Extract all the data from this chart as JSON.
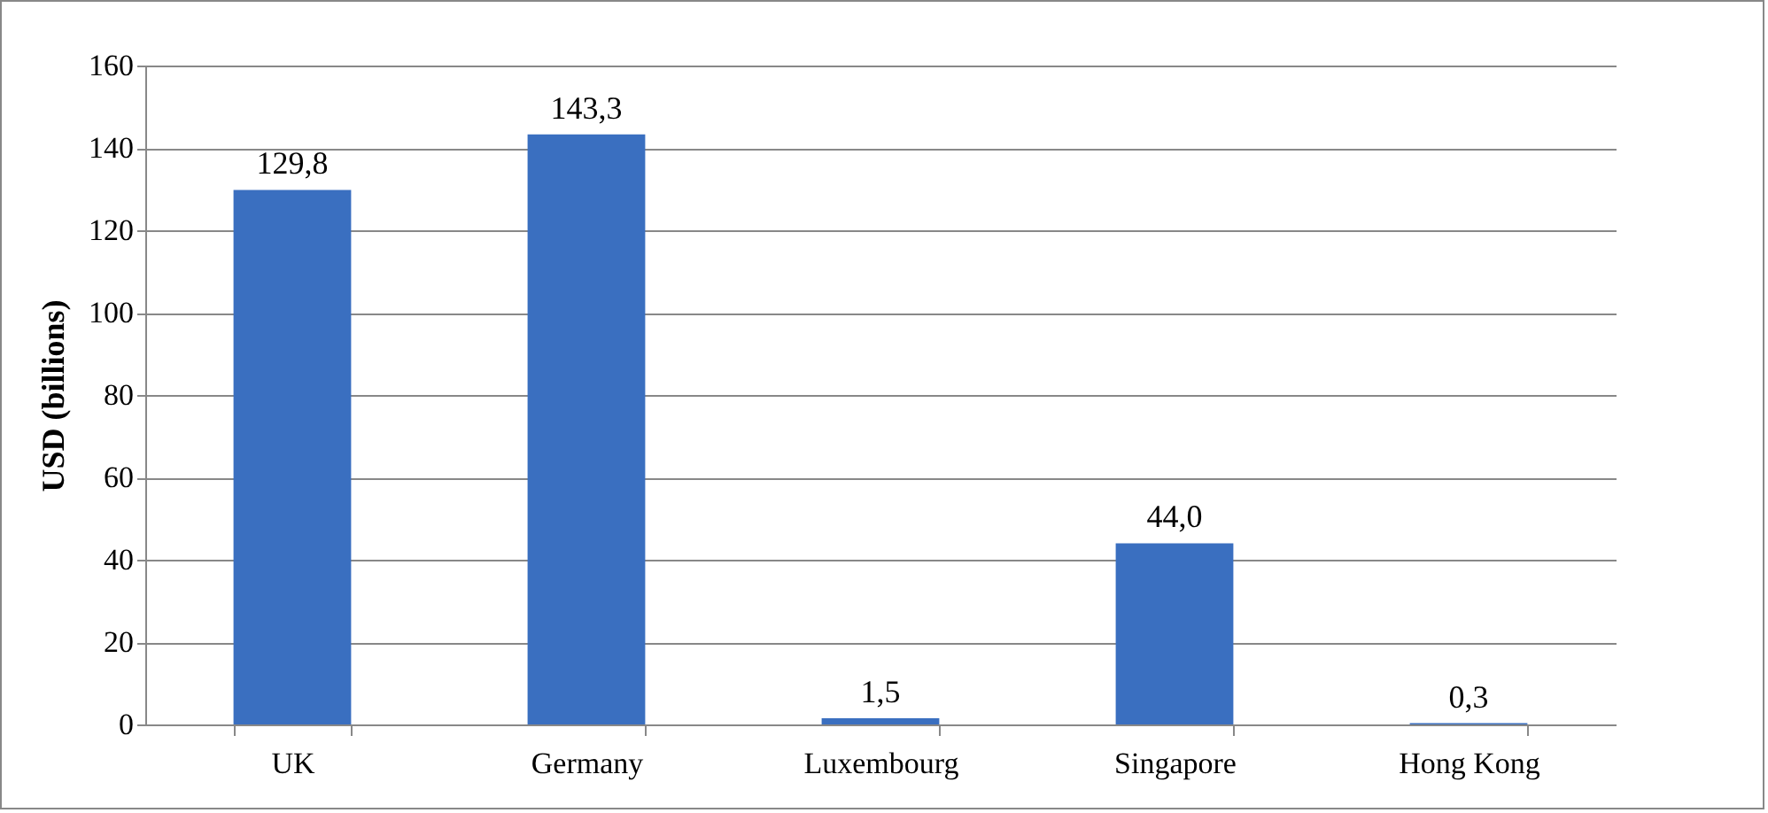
{
  "chart_data": {
    "type": "bar",
    "ylabel": "USD (billions)",
    "categories": [
      "UK",
      "Germany",
      "Luxembourg",
      "Singapore",
      "Hong Kong"
    ],
    "values": [
      129.8,
      143.3,
      1.5,
      44.0,
      0.3
    ],
    "value_labels": [
      "129,8",
      "143,3",
      "1,5",
      "44,0",
      "0,3"
    ],
    "color": "#3a6fc0",
    "ylim": [
      0,
      160
    ],
    "yticks": [
      0,
      20,
      40,
      60,
      80,
      100,
      120,
      140,
      160
    ],
    "grid": "y"
  }
}
